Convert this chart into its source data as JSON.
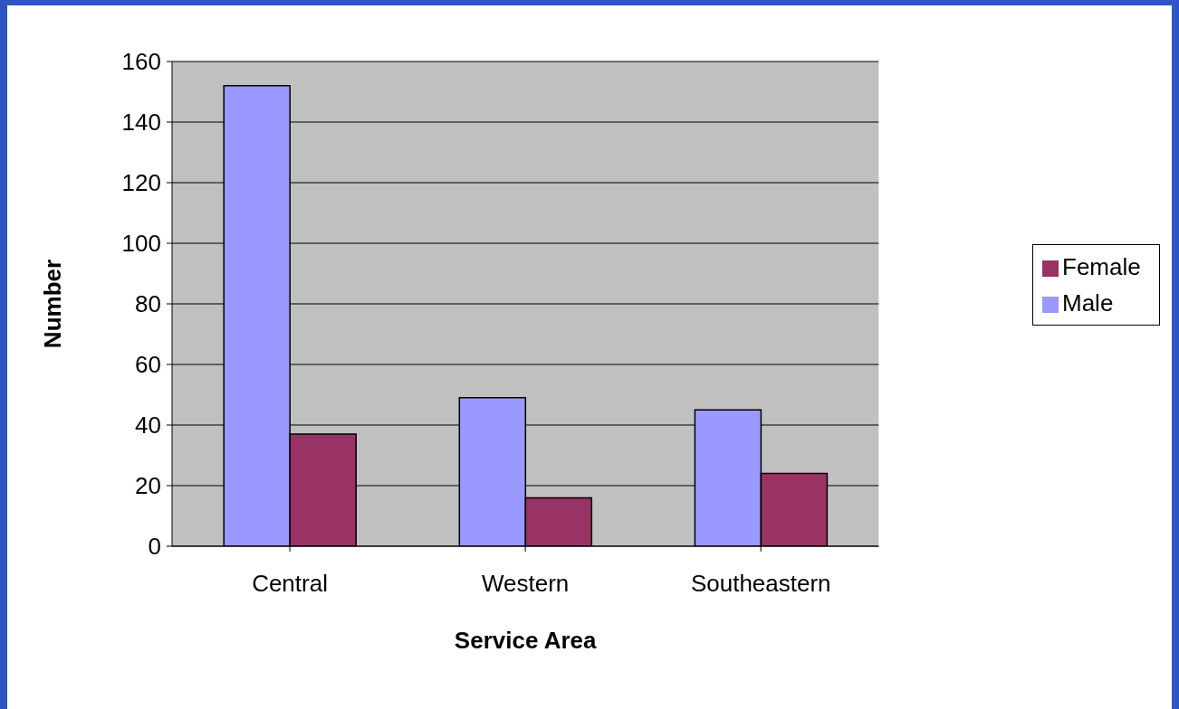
{
  "chart_data": {
    "type": "bar",
    "xlabel": "Service Area",
    "ylabel": "Number",
    "categories": [
      "Central",
      "Western",
      "Southeastern"
    ],
    "series": [
      {
        "name": "Male",
        "color": "#9999ff",
        "values": [
          152,
          49,
          45
        ]
      },
      {
        "name": "Female",
        "color": "#993366",
        "values": [
          37,
          16,
          24
        ]
      }
    ],
    "ylim": [
      0,
      160
    ],
    "yticks": [
      0,
      20,
      40,
      60,
      80,
      100,
      120,
      140,
      160
    ],
    "grid": "y",
    "legend": "right"
  }
}
